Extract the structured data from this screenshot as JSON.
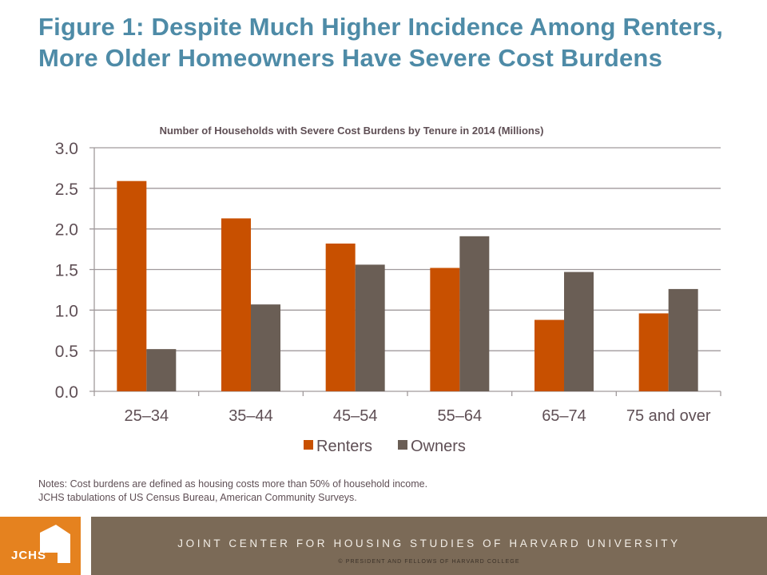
{
  "title": "Figure 1: Despite Much Higher Incidence Among Renters, More Older Homeowners Have Severe Cost Burdens",
  "notes": [
    "Notes: Cost burdens are defined as housing costs more than 50% of household income.",
    "JCHS tabulations of US Census Bureau, American Community Surveys."
  ],
  "footer": {
    "logo_text": "JCHS",
    "organization": "JOINT CENTER FOR HOUSING STUDIES OF HARVARD UNIVERSITY",
    "copyright": "© PRESIDENT AND FELLOWS OF HARVARD COLLEGE"
  },
  "colors": {
    "title": "#4e8ba7",
    "renters": "#c85000",
    "owners": "#6a5e55",
    "gridline": "#a09a9c",
    "axis_text": "#5f4f55",
    "logo_bg": "#e5821f",
    "footer_bg": "#7b6a57"
  },
  "chart_data": {
    "type": "bar",
    "title": "Number of Households with Severe Cost Burdens by Tenure in 2014 (Millions)",
    "xlabel": "",
    "ylabel": "",
    "categories": [
      "25–34",
      "35–44",
      "45–54",
      "55–64",
      "65–74",
      "75 and over"
    ],
    "series": [
      {
        "name": "Renters",
        "values": [
          2.59,
          2.13,
          1.82,
          1.52,
          0.88,
          0.96
        ]
      },
      {
        "name": "Owners",
        "values": [
          0.52,
          1.07,
          1.56,
          1.91,
          1.47,
          1.26
        ]
      }
    ],
    "ylim": [
      0,
      3.0
    ],
    "yticks": [
      "0.0",
      "0.5",
      "1.0",
      "1.5",
      "2.0",
      "2.5",
      "3.0"
    ],
    "ytick_values": [
      0,
      0.5,
      1.0,
      1.5,
      2.0,
      2.5,
      3.0
    ],
    "grid": true,
    "legend_position": "bottom"
  }
}
